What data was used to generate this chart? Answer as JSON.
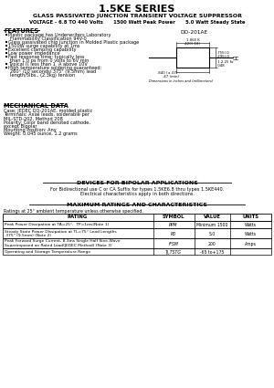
{
  "title": "1.5KE SERIES",
  "subtitle1": "GLASS PASSIVATED JUNCTION TRANSIENT VOLTAGE SUPPRESSOR",
  "subtitle2": "VOLTAGE - 6.8 TO 440 Volts      1500 Watt Peak Power      5.0 Watt Steady State",
  "features_title": "FEATURES",
  "feature_items": [
    {
      "text": "Plastic package has Underwriters Laboratory",
      "bullet": true,
      "indent": false
    },
    {
      "text": "Flammability Classification 94V-0",
      "bullet": false,
      "indent": true
    },
    {
      "text": "Glass passivated chip junction in Molded Plastic package",
      "bullet": true,
      "indent": false
    },
    {
      "text": "1500W surge capability at 1ms",
      "bullet": true,
      "indent": false
    },
    {
      "text": "Excellent clamping capability",
      "bullet": true,
      "indent": false
    },
    {
      "text": "Low power impedance",
      "bullet": true,
      "indent": false
    },
    {
      "text": "Fast response time: typically less",
      "bullet": true,
      "indent": false
    },
    {
      "text": "than 1.0 ps from 0 volts to 6V min",
      "bullet": false,
      "indent": true
    },
    {
      "text": "Typical I⁒ less than 1  A above 10V",
      "bullet": true,
      "indent": false
    },
    {
      "text": "High temperature soldering guaranteed:",
      "bullet": true,
      "indent": false
    },
    {
      "text": "260° /10 seconds/.375\" (9.5mm) lead",
      "bullet": false,
      "indent": true
    },
    {
      "text": "length/5lbs., (2.3kg) tension",
      "bullet": false,
      "indent": true
    }
  ],
  "package_label": "DO-201AE",
  "mech_title": "MECHANICAL DATA",
  "mech_items": [
    "Case: JEDEC DO-201AE, molded plastic",
    "Terminals: Axial leads, solderable per",
    "MIL-STD-202, Method 208",
    "Polarity: Color band denoted cathode,",
    "except Bipolar",
    "Mounting Position: Any",
    "Weight: 0.045 ounce, 1.2 grams"
  ],
  "bipolar_title": "DEVICES FOR BIPOLAR APPLICATIONS",
  "bipolar_text1": "For Bidirectional use C or CA Suffix for types 1.5KE6.8 thru types 1.5KE440.",
  "bipolar_text2": "Electrical characteristics apply in both directions.",
  "ratings_title": "MAXIMUM RATINGS AND CHARACTERISTICS",
  "ratings_note": "Ratings at 25° ambient temperature unless otherwise specified.",
  "table_headers": [
    "RATING",
    "SYMBOL",
    "VALUE",
    "UNITS"
  ],
  "table_rows": [
    {
      "rating_lines": [
        "Peak Power Dissipation at TA=25°,  TP=1ms(Note 1)"
      ],
      "symbol": "PPM",
      "value": "Minimum 1500",
      "units": "Watts"
    },
    {
      "rating_lines": [
        "Steady State Power Dissipation at TL=75° Lead Lengths",
        ".375\" (9.5mm) (Note 2)"
      ],
      "symbol": "PD",
      "value": "5.0",
      "units": "Watts"
    },
    {
      "rating_lines": [
        "Peak Forward Surge Current, 8.3ms Single Half Sine-Wave",
        "Superimposed on Rated Load(JEDEC Method) (Note 3)"
      ],
      "symbol": "IFSM",
      "value": "200",
      "units": "Amps"
    },
    {
      "rating_lines": [
        "Operating and Storage Temperature Range"
      ],
      "symbol": "TJ,TSTG",
      "value": "-65 to+175",
      "units": ""
    }
  ],
  "bg_color": "#ffffff"
}
